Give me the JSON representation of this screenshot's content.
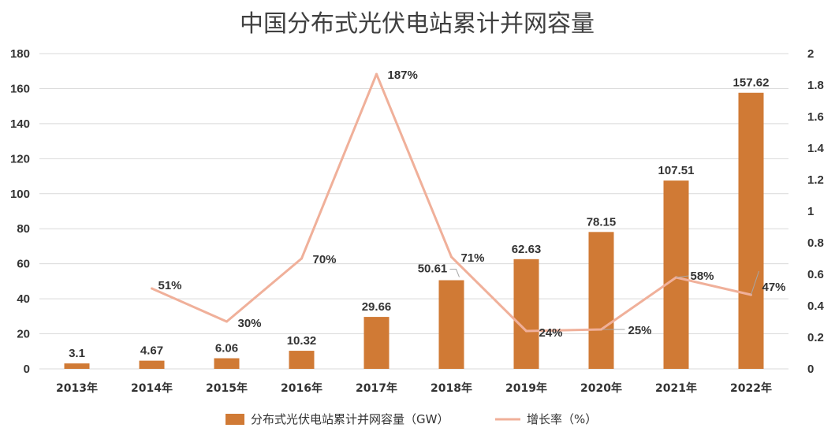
{
  "chart_data": {
    "type": "bar",
    "title": "中国分布式光伏电站累计并网容量",
    "categories": [
      "2013年",
      "2014年",
      "2015年",
      "2016年",
      "2017年",
      "2018年",
      "2019年",
      "2020年",
      "2021年",
      "2022年"
    ],
    "series": [
      {
        "name": "分布式光伏电站累计并网容量（GW）",
        "type": "bar",
        "axis": "left",
        "color": "#D07A35",
        "values": [
          3.1,
          4.67,
          6.06,
          10.32,
          29.66,
          50.61,
          62.63,
          78.15,
          107.51,
          157.62
        ],
        "labels": [
          "3.1",
          "4.67",
          "6.06",
          "10.32",
          "29.66",
          "50.61",
          "62.63",
          "78.15",
          "107.51",
          "157.62"
        ]
      },
      {
        "name": "增长率（%）",
        "type": "line",
        "axis": "right",
        "color": "#F0B09A",
        "values": [
          null,
          0.51,
          0.3,
          0.7,
          1.87,
          0.71,
          0.24,
          0.25,
          0.58,
          0.47
        ],
        "labels": [
          null,
          "51%",
          "30%",
          "70%",
          "187%",
          "71%",
          "24%",
          "25%",
          "58%",
          "47%"
        ]
      }
    ],
    "y_left": {
      "min": 0,
      "max": 180,
      "ticks": [
        "0",
        "20",
        "40",
        "60",
        "80",
        "100",
        "120",
        "140",
        "160",
        "180"
      ]
    },
    "y_right": {
      "min": 0,
      "max": 2,
      "ticks": [
        "0",
        "0.2",
        "0.4",
        "0.6",
        "0.8",
        "1",
        "1.2",
        "1.4",
        "1.6",
        "1.8",
        "2"
      ]
    },
    "grid": true,
    "legend_position": "bottom"
  }
}
